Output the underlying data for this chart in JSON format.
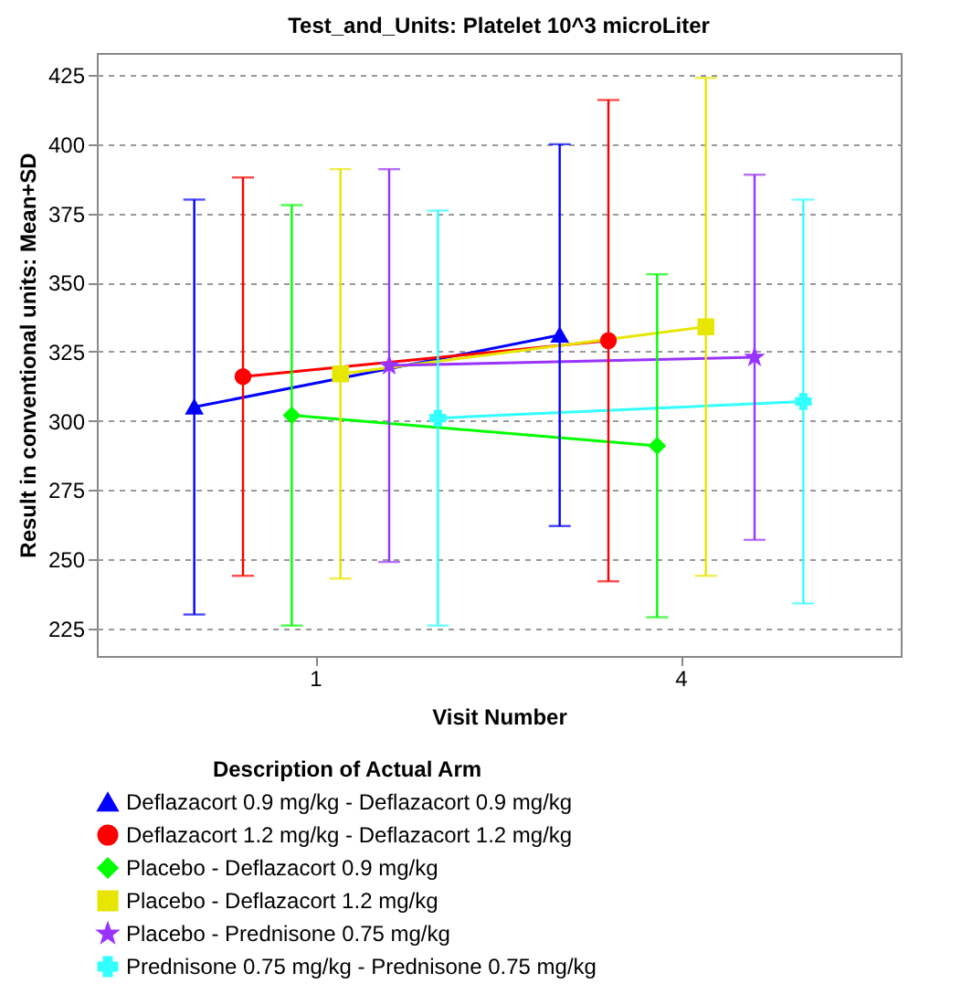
{
  "chart_data": {
    "type": "line",
    "title": "Test_and_Units: Platelet 10^3 microLiter",
    "xlabel": "Visit Number",
    "ylabel": "Result in conventional units:  Mean+SD",
    "legend_title": "Description of Actual Arm",
    "categories": [
      "1",
      "4"
    ],
    "series": [
      {
        "name": "Deflazacort 0.9 mg/kg - Deflazacort 0.9 mg/kg",
        "color": "#0000ff",
        "marker": "triangle",
        "values": [
          305,
          331
        ],
        "errors": [
          75,
          69
        ]
      },
      {
        "name": "Deflazacort 1.2 mg/kg - Deflazacort 1.2 mg/kg",
        "color": "#ff0000",
        "marker": "circle",
        "values": [
          316,
          329
        ],
        "errors": [
          72,
          87
        ]
      },
      {
        "name": "Placebo - Deflazacort 0.9 mg/kg",
        "color": "#00ff00",
        "marker": "diamond",
        "values": [
          302,
          291
        ],
        "errors": [
          76,
          62
        ]
      },
      {
        "name": "Placebo - Deflazacort 1.2 mg/kg",
        "color": "#e6e600",
        "marker": "square",
        "values": [
          317,
          334
        ],
        "errors": [
          74,
          90
        ]
      },
      {
        "name": "Placebo - Prednisone 0.75 mg/kg",
        "color": "#9933ff",
        "marker": "star",
        "values": [
          320,
          323
        ],
        "errors": [
          71,
          66
        ]
      },
      {
        "name": "Prednisone 0.75 mg/kg - Prednisone 0.75 mg/kg",
        "color": "#33ffff",
        "marker": "cross",
        "values": [
          301,
          307
        ],
        "errors": [
          75,
          73
        ]
      }
    ],
    "ylim": [
      215,
      433
    ],
    "yticks": [
      225,
      250,
      275,
      300,
      325,
      350,
      375,
      400,
      425
    ],
    "grid": "y",
    "legend": "bottom"
  }
}
